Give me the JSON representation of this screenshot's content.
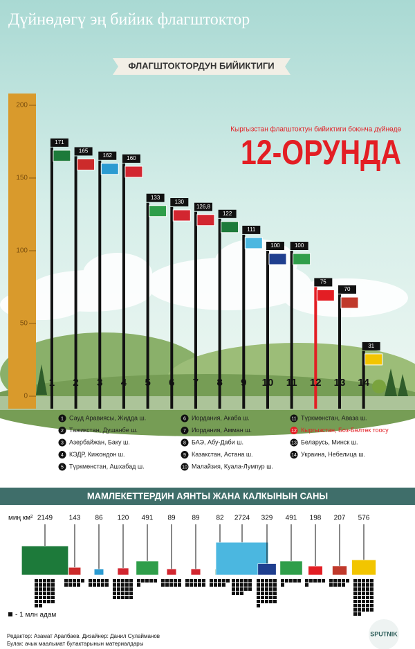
{
  "header": {
    "title": "Дүйнөдөгү эң бийик флагштоктор"
  },
  "chart_data": [
    {
      "type": "bar",
      "title": "ФЛАГШТОКТОРДУН БИЙИКТИГИ",
      "annotation": "Кыргызстан флагштоктун бийиктиги боюнча дүйнөдө",
      "highlight": "12-ОРУНДА",
      "categories": [
        "1",
        "2",
        "3",
        "4",
        "5",
        "6",
        "7",
        "8",
        "9",
        "10",
        "11",
        "12",
        "13",
        "14"
      ],
      "values": [
        171,
        165,
        162,
        160,
        133,
        130,
        126.8,
        122,
        111,
        100,
        100,
        75,
        70,
        31
      ],
      "value_labels": [
        "171",
        "165",
        "162",
        "160",
        "133",
        "130",
        "126,8",
        "122",
        "111",
        "100",
        "100",
        "75",
        "70",
        "31"
      ],
      "colors": [
        "#111111",
        "#111111",
        "#111111",
        "#111111",
        "#111111",
        "#111111",
        "#111111",
        "#111111",
        "#111111",
        "#111111",
        "#111111",
        "#e31e24",
        "#111111",
        "#111111"
      ],
      "flag_colors": [
        "#1d7a3a",
        "#cc2b2b",
        "#2b9bd1",
        "#d22630",
        "#2f9e4a",
        "#d22630",
        "#d22630",
        "#1d7a3a",
        "#4bb7e0",
        "#1f3f8f",
        "#2f9e4a",
        "#e31e24",
        "#c0392b",
        "#f2c500"
      ],
      "ylim": [
        0,
        200
      ],
      "yticks": [
        0,
        50,
        100,
        150,
        200
      ],
      "legend": [
        "Сауд Аравиясы, Жидда ш.",
        "Тажикстан, Душанбе ш.",
        "Азербайжан, Баку ш.",
        "КЭДР, Кижондон ш.",
        "Түркмөнстан, Ашхабад ш.",
        "Иордания, Акаба ш.",
        "Иордания, Амман ш.",
        "БАЭ, Абу-Даби ш.",
        "Казакстан, Астана ш.",
        "Малайзия, Куала-Лумпур ш.",
        "Түркмөнстан, Аваза ш.",
        "Кыргызстан, Боз-Бөлтөк тоосу",
        "Беларусь, Минск ш.",
        "Украина, Небелица ш."
      ]
    },
    {
      "type": "pictogram",
      "title": "МАМЛЕКЕТТЕРДИН АЯНТЫ ЖАНА КАЛКЫНЫН САНЫ",
      "unit": "миң км²",
      "values": [
        2149,
        143,
        86,
        120,
        491,
        89,
        89,
        82,
        2724,
        329,
        491,
        198,
        207,
        576
      ],
      "counts": [
        32,
        9,
        10,
        25,
        6,
        10,
        10,
        9,
        18,
        31,
        6,
        6,
        9,
        42
      ],
      "count_label": "- 1 млн адам"
    }
  ],
  "footer": {
    "editor": "Редактор: Азамат Аралбаев. Дизайнер: Данил Сулайманов",
    "source": "Булак: ачык маалымат булактарынын материалдары",
    "brand": "SPUTNIK"
  }
}
